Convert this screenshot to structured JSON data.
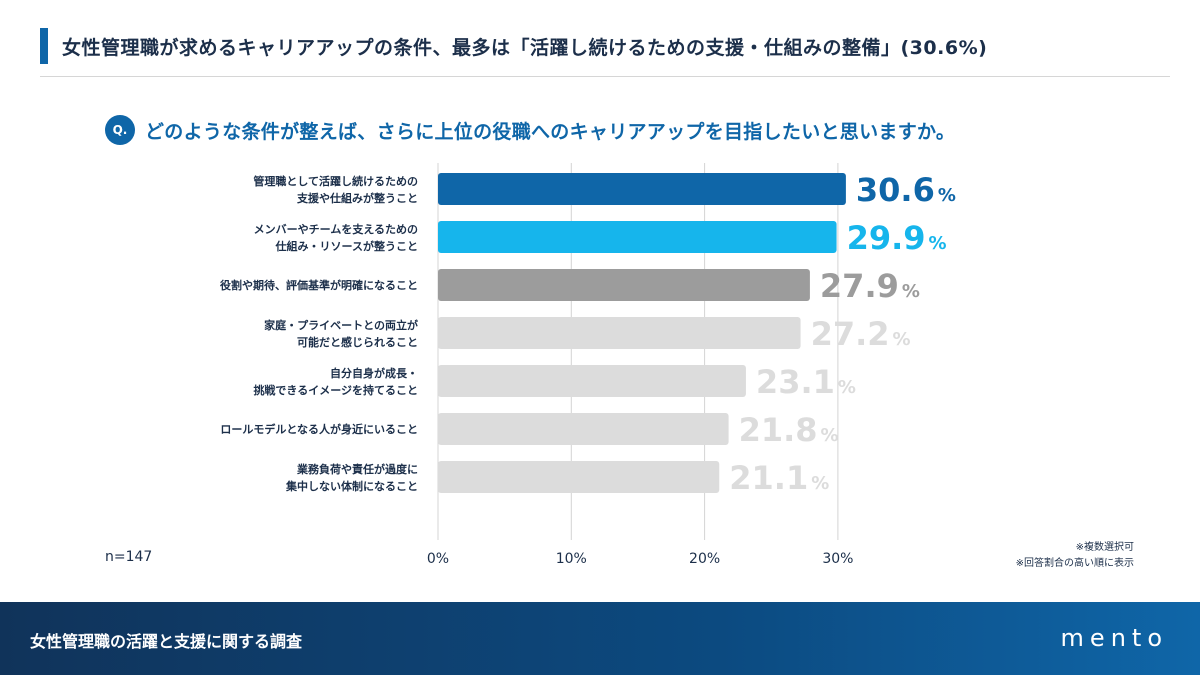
{
  "header": {
    "title": "女性管理職が求めるキャリアアップの条件、最多は「活躍し続けるための支援・仕組みの整備」(30.6%)"
  },
  "question": {
    "badge": "Q.",
    "text": "どのような条件が整えば、さらに上位の役職へのキャリアアップを目指したいと思いますか。"
  },
  "chart_data": {
    "type": "bar",
    "orientation": "horizontal",
    "categories": [
      [
        "管理職として活躍し続けるための",
        "支援や仕組みが整うこと"
      ],
      [
        "メンバーやチームを支えるための",
        "仕組み・リソースが整うこと"
      ],
      [
        "役割や期待、評価基準が明確になること"
      ],
      [
        "家庭・プライベートとの両立が",
        "可能だと感じられること"
      ],
      [
        "自分自身が成長・",
        "挑戦できるイメージを持てること"
      ],
      [
        "ロールモデルとなる人が身近にいること"
      ],
      [
        "業務負荷や責任が過度に",
        "集中しない体制になること"
      ]
    ],
    "values": [
      30.6,
      29.9,
      27.9,
      27.2,
      23.1,
      21.8,
      21.1
    ],
    "value_labels": [
      "30.6",
      "29.9",
      "27.9",
      "27.2",
      "23.1",
      "21.8",
      "21.1"
    ],
    "unit": "%",
    "colors": [
      "#0f66a8",
      "#16b5ec",
      "#9c9c9c",
      "#dcdcdc",
      "#dcdcdc",
      "#dcdcdc",
      "#dcdcdc"
    ],
    "label_colors": [
      "#0f66a8",
      "#16b5ec",
      "#9c9c9c",
      "#dcdcdc",
      "#dcdcdc",
      "#dcdcdc",
      "#dcdcdc"
    ],
    "xlim": [
      0,
      30
    ],
    "ticks": [
      0,
      10,
      20,
      30
    ],
    "tick_labels": [
      "0%",
      "10%",
      "20%",
      "30%"
    ],
    "grid": true
  },
  "sample": {
    "n_label": "n=147"
  },
  "notes": {
    "line1": "※複数選択可",
    "line2": "※回答割合の高い順に表示"
  },
  "footer": {
    "text": "女性管理職の活躍と支援に関する調査",
    "logo": "mento"
  },
  "colors": {
    "primary": "#0f66a8",
    "accent": "#16b5ec",
    "text": "#1c2f4a"
  }
}
